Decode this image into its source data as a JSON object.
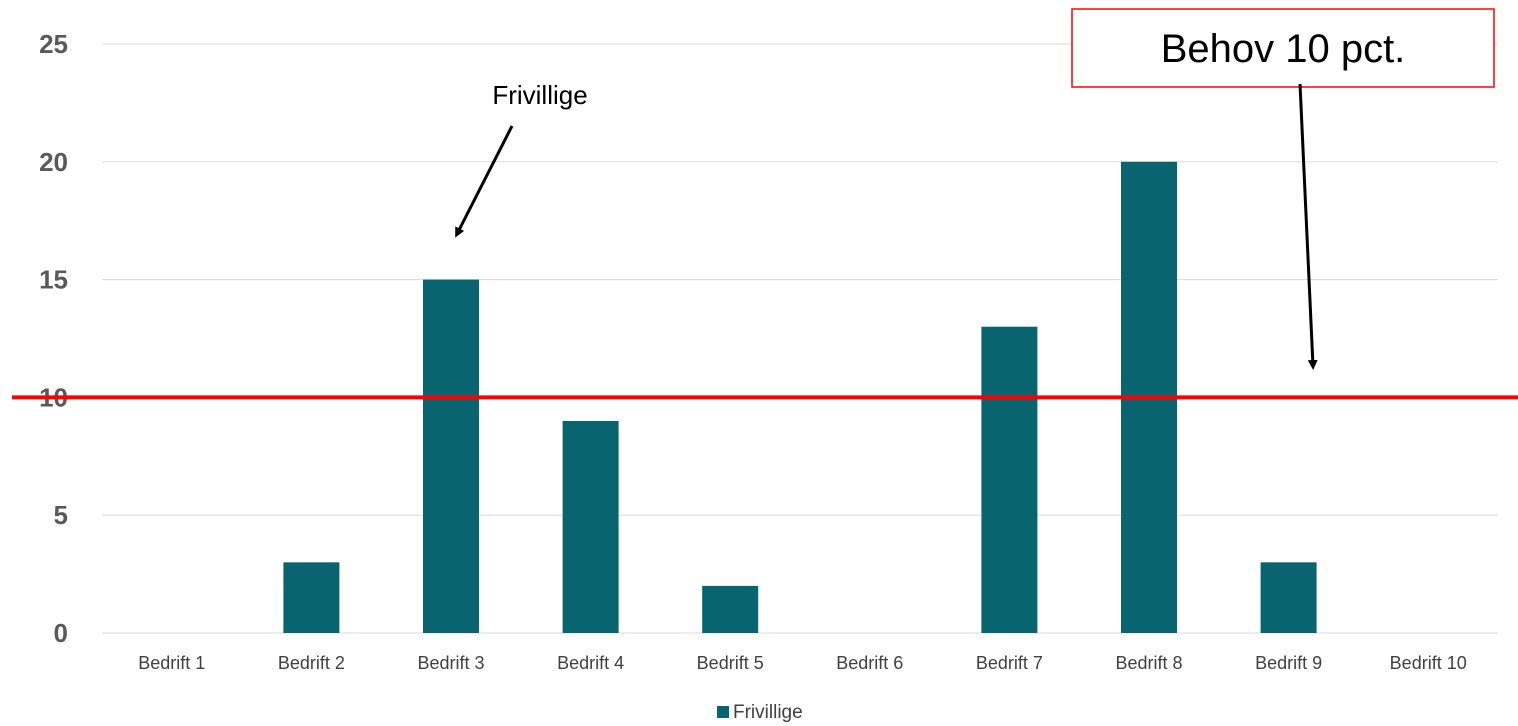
{
  "chart_data": {
    "type": "bar",
    "categories": [
      "Bedrift 1",
      "Bedrift 2",
      "Bedrift 3",
      "Bedrift 4",
      "Bedrift 5",
      "Bedrift 6",
      "Bedrift 7",
      "Bedrift 8",
      "Bedrift 9",
      "Bedrift 10"
    ],
    "series": [
      {
        "name": "Frivillige",
        "values": [
          0,
          3,
          15,
          9,
          2,
          0,
          13,
          20,
          3,
          0
        ]
      }
    ],
    "yticks": [
      0,
      5,
      10,
      15,
      20,
      25
    ],
    "ylim": [
      0,
      25
    ],
    "grid": true,
    "legend_position": "bottom",
    "reference_line": {
      "value": 10,
      "color": "#FF0000"
    },
    "annotations": [
      {
        "text": "Frivillige",
        "target_category": "Bedrift 3"
      },
      {
        "text": "Behov 10 pct.",
        "boxed": true,
        "box_color": "#FF0000",
        "target": "reference_line"
      }
    ],
    "colors": {
      "bar": "#08646E",
      "grid": "#D9D9D9",
      "reference_line": "#FF0000"
    }
  }
}
